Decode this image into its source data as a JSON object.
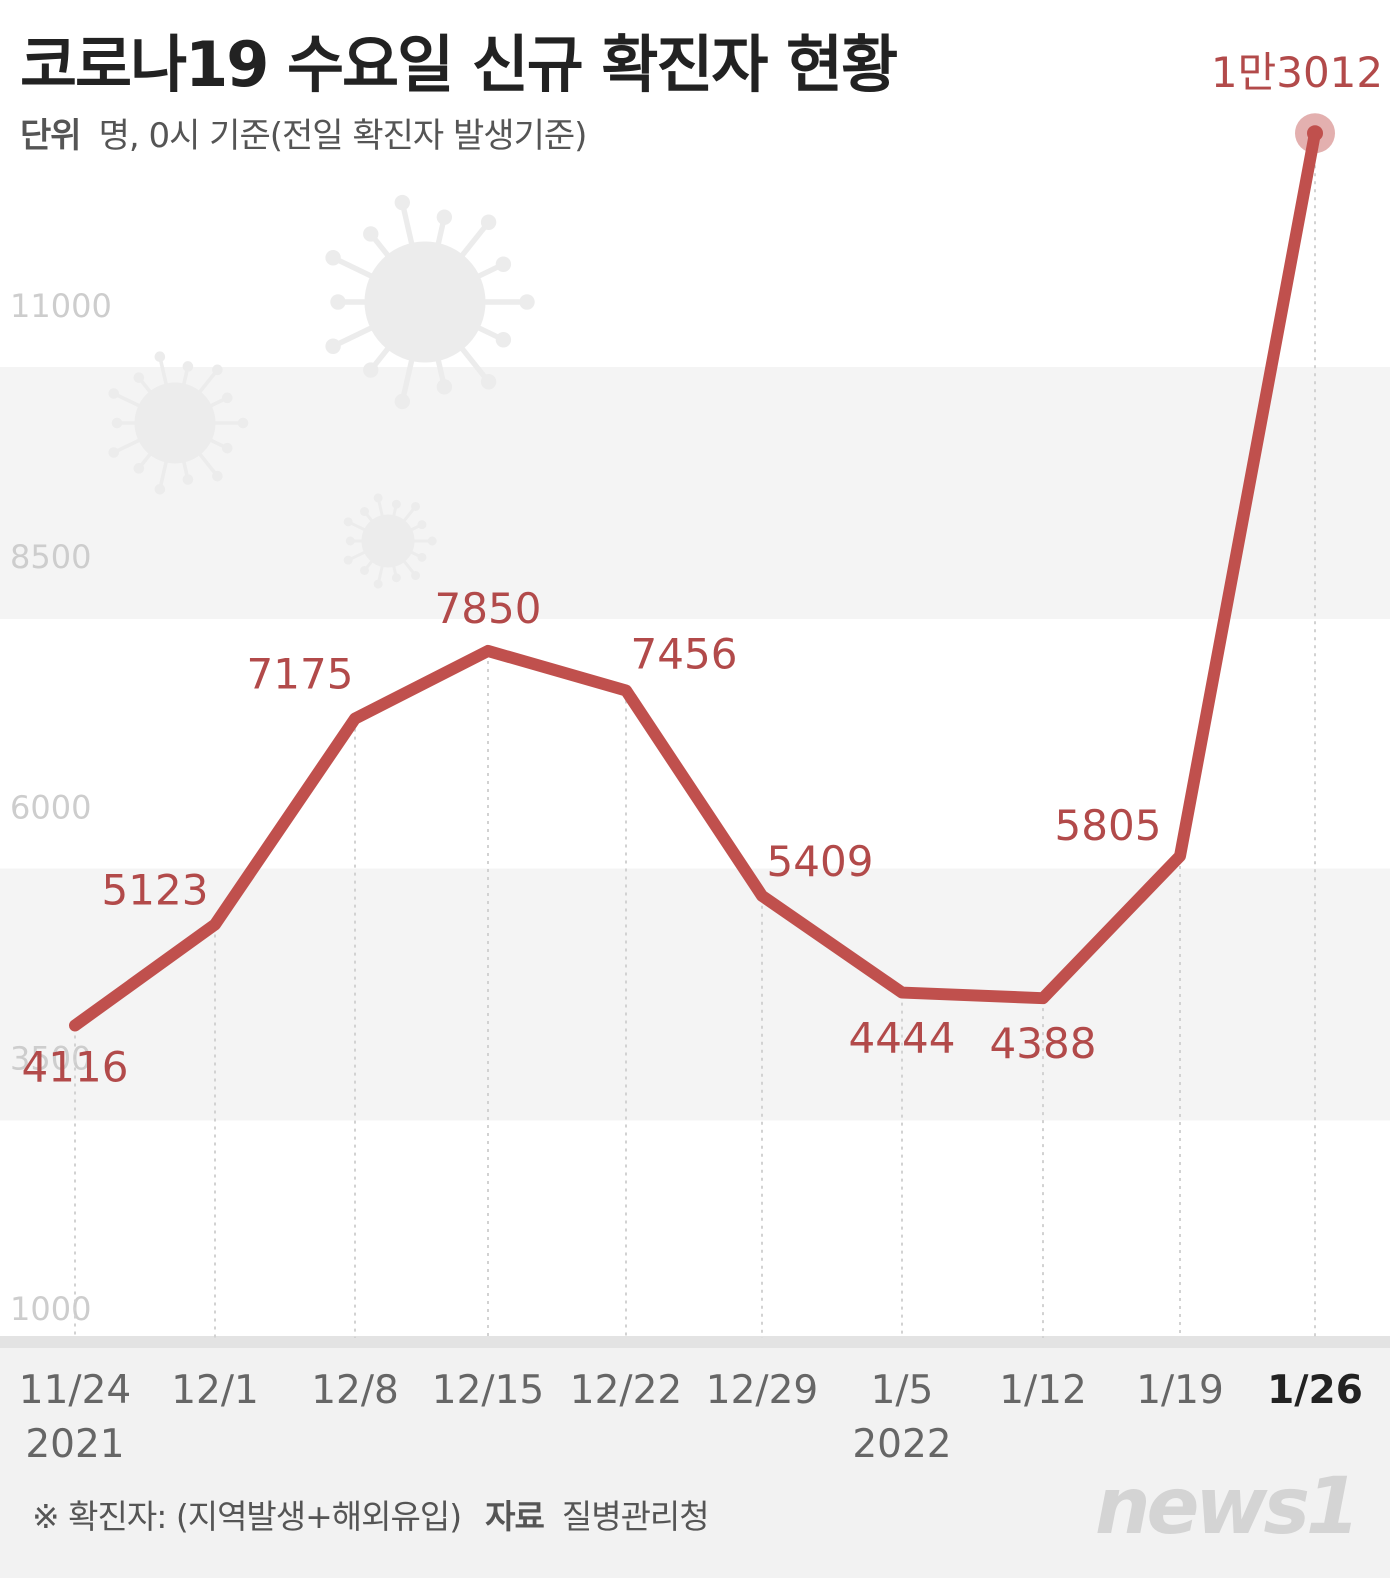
{
  "header": {
    "title": "코로나19 수요일 신규 확진자 현황",
    "unit_label": "단위",
    "unit_text": "명, 0시 기준(전일 확진자 발생기준)"
  },
  "footer": {
    "note": "※ 확진자: (지역발생+해외유입)",
    "source_label": "자료",
    "source": "질병관리청"
  },
  "logo_text": "news1",
  "colors": {
    "line": "#c0504d",
    "label": "#b24a4a",
    "band": "#f4f4f4",
    "axis_band": "#f2f2f2"
  },
  "chart_data": {
    "type": "line",
    "title": "코로나19 수요일 신규 확진자 현황",
    "categories": [
      "11/24",
      "12/1",
      "12/8",
      "12/15",
      "12/22",
      "12/29",
      "1/5",
      "1/12",
      "1/19",
      "1/26"
    ],
    "year_labels": [
      "2021",
      "",
      "",
      "",
      "",
      "",
      "2022",
      "",
      "",
      ""
    ],
    "series": [
      {
        "values": [
          4116,
          5123,
          7175,
          7850,
          7456,
          5409,
          4444,
          4388,
          5805,
          13012
        ],
        "data_labels": [
          "4116",
          "5123",
          "7175",
          "7850",
          "7456",
          "5409",
          "4444",
          "4388",
          "5805",
          "1만3012"
        ]
      }
    ],
    "y_ticks": [
      "1000",
      "3500",
      "6000",
      "8500",
      "11000"
    ],
    "ylim": [
      1000,
      13012
    ],
    "highlight_category": "1/26",
    "icons": [
      "virus-icon",
      "virus-icon",
      "virus-icon"
    ]
  }
}
